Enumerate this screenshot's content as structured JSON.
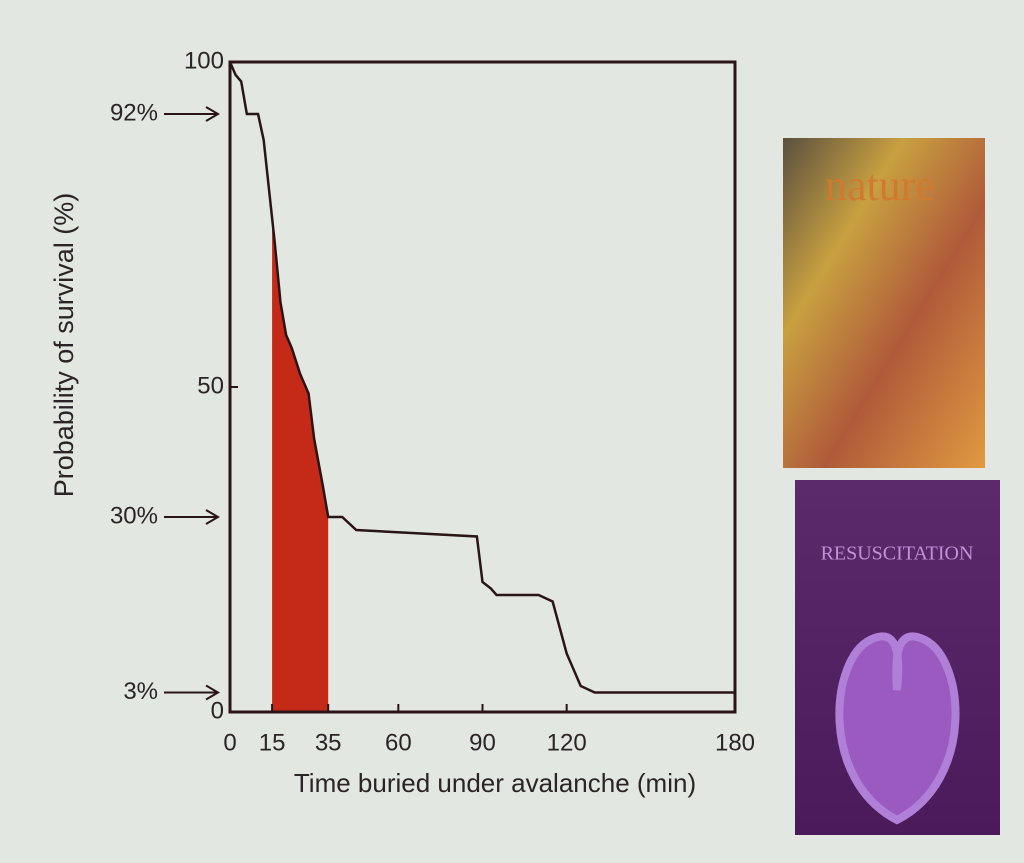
{
  "chart_data": {
    "type": "line",
    "ylabel": "Probability of survival (%)",
    "xlabel": "Time buried under avalanche (min)",
    "x": [
      0,
      2,
      4,
      6,
      10,
      12,
      14,
      16,
      18,
      20,
      22,
      25,
      28,
      30,
      33,
      35,
      40,
      45,
      88,
      90,
      93,
      95,
      110,
      115,
      120,
      125,
      130,
      180
    ],
    "values": [
      100,
      98,
      97,
      92,
      92,
      88,
      80,
      72,
      63,
      58,
      56,
      52,
      49,
      42,
      35,
      30,
      30,
      28,
      27,
      20,
      19,
      18,
      18,
      17,
      9,
      4,
      3,
      3
    ],
    "color": "#2a1416",
    "highlight": [
      15,
      35
    ],
    "highlight_color": "#c42a17",
    "xlim": [
      0,
      180
    ],
    "xticks": [
      0,
      15,
      35,
      60,
      90,
      120,
      180
    ],
    "ylim": [
      0,
      100
    ],
    "yticks": [
      0,
      50,
      100
    ],
    "annotations": [
      {
        "value": 92,
        "label": "92%"
      },
      {
        "value": 30,
        "label": "30%"
      },
      {
        "value": 3,
        "label": "3%"
      }
    ]
  },
  "covers": [
    "nature",
    "RESUSCITATION"
  ]
}
